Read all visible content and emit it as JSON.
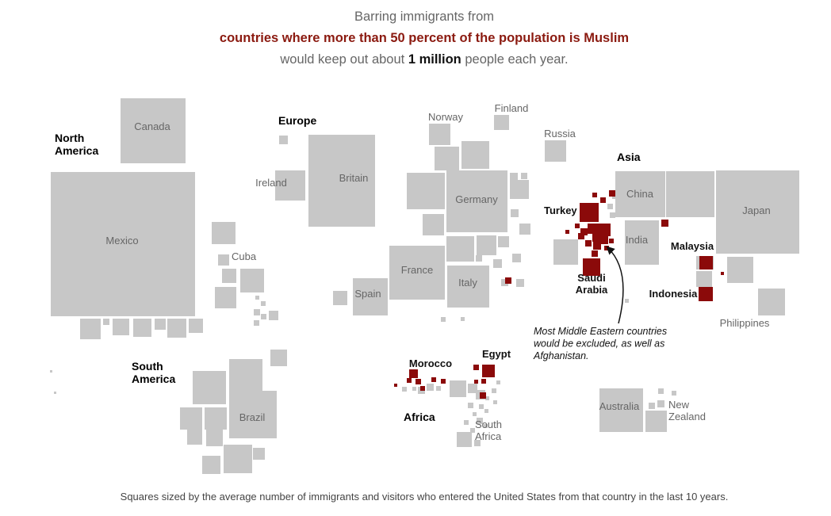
{
  "headline": {
    "part1": "Barring immigrants from ",
    "highlight": "countries where more than 50 percent of the population is Muslim",
    "part2": " would keep out about ",
    "bold": "1 million",
    "part3": " people each year."
  },
  "annotation": [
    "Most Middle Eastern countries",
    "would be excluded, as well as",
    "Afghanistan."
  ],
  "footnote": "Squares sized by the average number of immigrants and visitors who entered the United States from that country in the last 10 years.",
  "colors": {
    "excluded": "#8b0a0a",
    "other": "#c7c7c7",
    "headline_highlight": "#8b1a10"
  },
  "chart_data": {
    "type": "cartogram",
    "encoding": "square area = average yearly number of immigrants and visitors to the United States, last 10 years",
    "total_excluded_per_year": "1 million",
    "regions": [
      {
        "name": [
          "North",
          "America"
        ]
      },
      {
        "name": [
          "Europe"
        ]
      },
      {
        "name": [
          "Asia"
        ]
      },
      {
        "name": [
          "South",
          "America"
        ]
      },
      {
        "name": [
          "Africa"
        ]
      }
    ],
    "labeled_countries": [
      {
        "name": [
          "Canada"
        ],
        "muslim_majority": false
      },
      {
        "name": [
          "Mexico"
        ],
        "muslim_majority": false
      },
      {
        "name": [
          "Cuba"
        ],
        "muslim_majority": false
      },
      {
        "name": [
          "Ireland"
        ],
        "muslim_majority": false
      },
      {
        "name": [
          "Britain"
        ],
        "muslim_majority": false
      },
      {
        "name": [
          "Norway"
        ],
        "muslim_majority": false
      },
      {
        "name": [
          "Finland"
        ],
        "muslim_majority": false
      },
      {
        "name": [
          "Russia"
        ],
        "muslim_majority": false
      },
      {
        "name": [
          "Germany"
        ],
        "muslim_majority": false
      },
      {
        "name": [
          "France"
        ],
        "muslim_majority": false
      },
      {
        "name": [
          "Spain"
        ],
        "muslim_majority": false
      },
      {
        "name": [
          "Italy"
        ],
        "muslim_majority": false
      },
      {
        "name": [
          "China"
        ],
        "muslim_majority": false
      },
      {
        "name": [
          "Japan"
        ],
        "muslim_majority": false
      },
      {
        "name": [
          "India"
        ],
        "muslim_majority": false
      },
      {
        "name": [
          "Philippines"
        ],
        "muslim_majority": false
      },
      {
        "name": [
          "Brazil"
        ],
        "muslim_majority": false
      },
      {
        "name": [
          "Australia"
        ],
        "muslim_majority": false
      },
      {
        "name": [
          "New",
          "Zealand"
        ],
        "muslim_majority": false
      },
      {
        "name": [
          "South",
          "Africa"
        ],
        "muslim_majority": false
      },
      {
        "name": [
          "Turkey"
        ],
        "muslim_majority": true
      },
      {
        "name": [
          "Saudi",
          "Arabia"
        ],
        "muslim_majority": true
      },
      {
        "name": [
          "Malaysia"
        ],
        "muslim_majority": true
      },
      {
        "name": [
          "Indonesia"
        ],
        "muslim_majority": true
      },
      {
        "name": [
          "Morocco"
        ],
        "muslim_majority": true
      },
      {
        "name": [
          "Egypt"
        ],
        "muslim_majority": true
      }
    ]
  }
}
